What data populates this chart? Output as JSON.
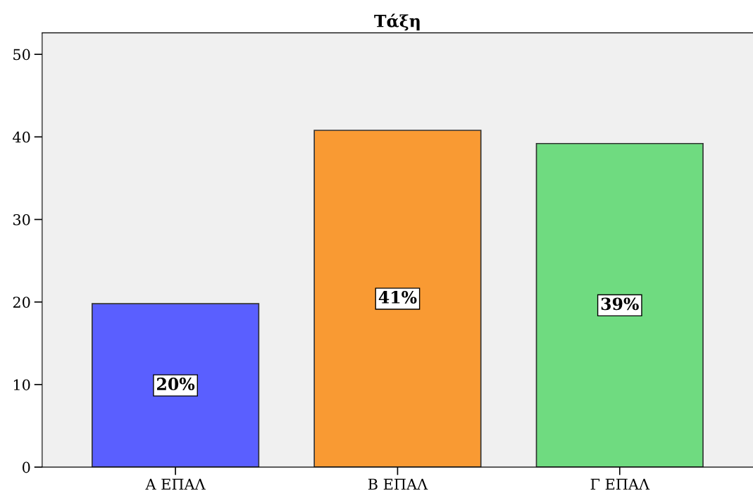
{
  "chart_data": {
    "type": "bar",
    "title": "Τάξη",
    "categories": [
      "Α ΕΠΑΛ",
      "Β ΕΠΑΛ",
      "Γ ΕΠΑΛ"
    ],
    "values": [
      19.8,
      40.8,
      39.2
    ],
    "value_labels": [
      "20%",
      "41%",
      "39%"
    ],
    "colors": [
      "#5a5fff",
      "#f99a33",
      "#6fdb80"
    ],
    "ylim": [
      0,
      52.6
    ],
    "yticks": [
      0,
      10,
      20,
      30,
      40,
      50
    ],
    "grid": false
  }
}
